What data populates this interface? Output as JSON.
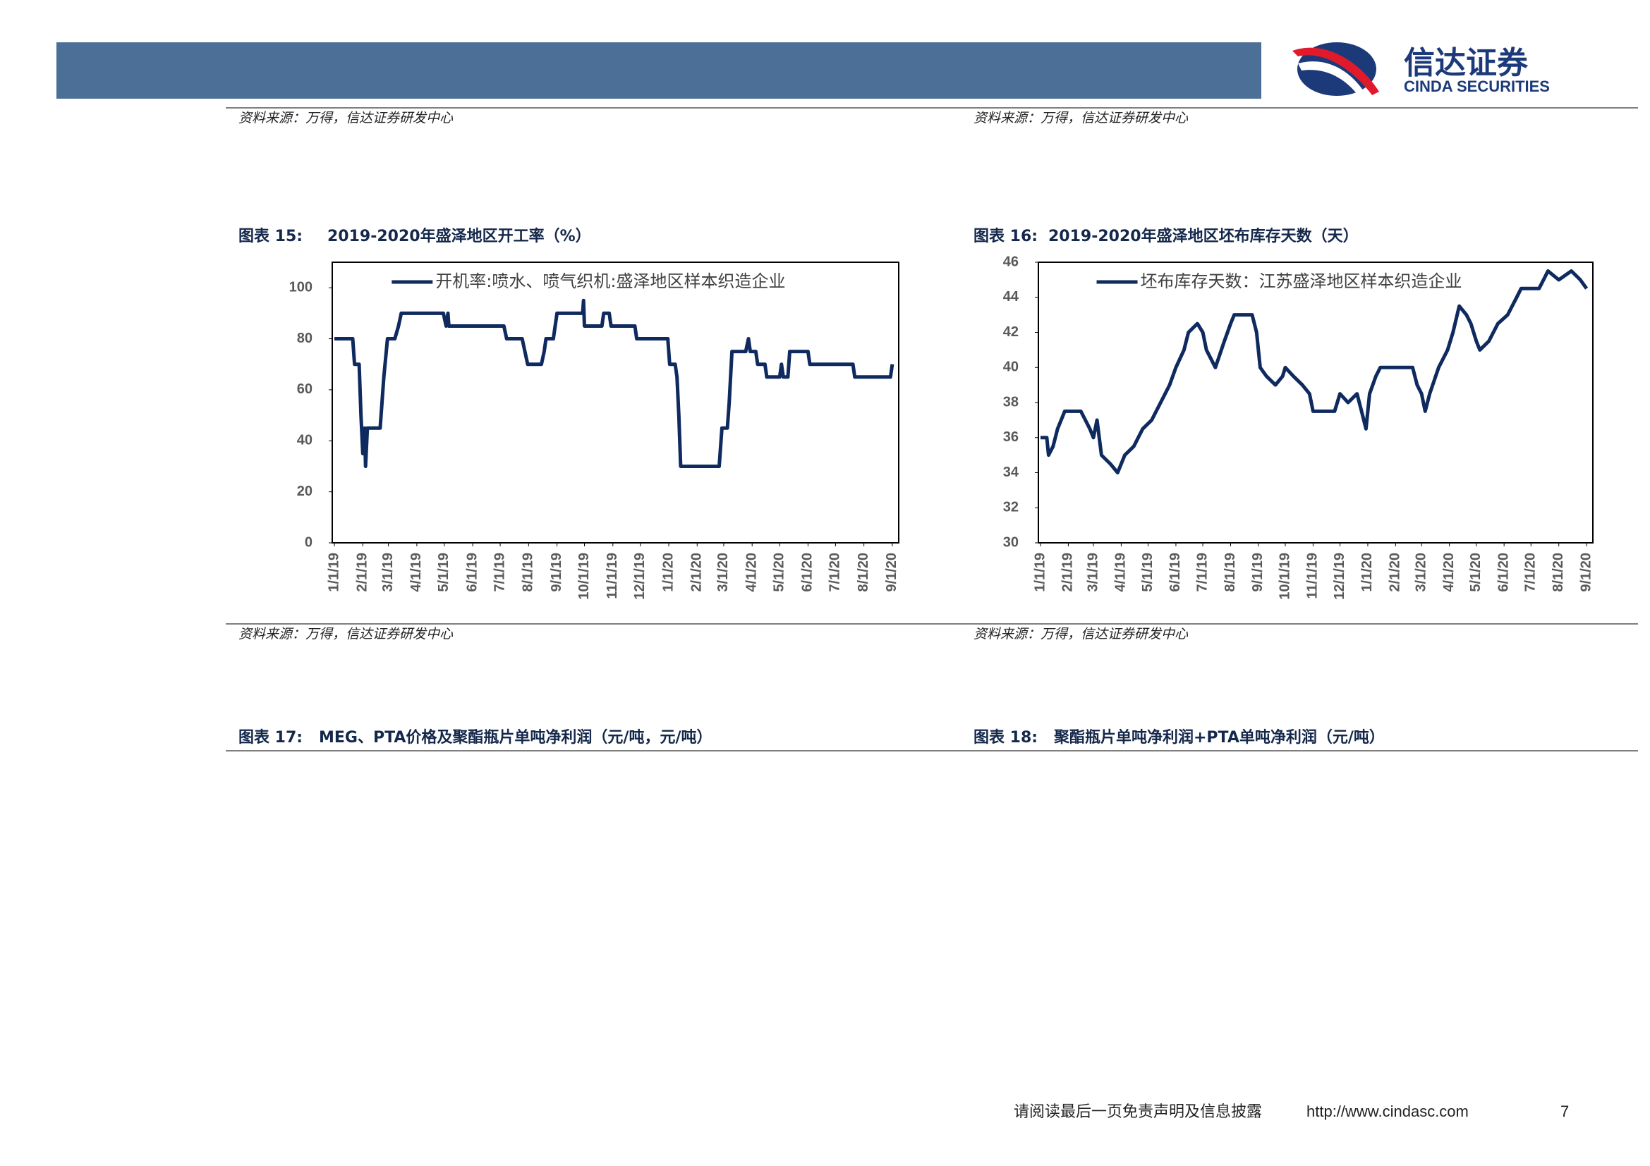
{
  "header": {
    "logo_cn": "信达证券",
    "logo_en": "CINDA SECURITIES"
  },
  "sources": [
    "资料来源：万得，信达证券研发中心",
    "资料来源：万得，信达证券研发中心",
    "资料来源：万得，信达证券研发中心",
    "资料来源：万得，信达证券研发中心"
  ],
  "captions": [
    {
      "label": "图表 17:",
      "title": "MEG、PTA价格及聚酯瓶片单吨净利润（元/吨，元/吨）"
    },
    {
      "label": "图表 18:",
      "title": "聚酯瓶片单吨净利润+PTA单吨净利润（元/吨）"
    }
  ],
  "footer": {
    "disclaimer": "请阅读最后一页免责声明及信息披露",
    "url": "http://www.cindasc.com",
    "page": "7"
  },
  "chart_data": [
    {
      "type": "line",
      "label": "图表 15:",
      "title": "2019-2020年盛泽地区开工率（%）",
      "x": [
        "1/1/19",
        "1/21/19",
        "1/23/19",
        "1/28/19",
        "1/30/19",
        "2/1/19",
        "2/3/19",
        "2/4/19",
        "2/6/19",
        "2/20/19",
        "2/24/19",
        "2/28/19",
        "3/8/19",
        "3/12/19",
        "3/15/19",
        "4/30/19",
        "5/3/19",
        "5/5/19",
        "5/6/19",
        "7/5/19",
        "7/8/19",
        "7/25/19",
        "7/28/19",
        "7/31/19",
        "8/15/19",
        "8/18/19",
        "8/20/19",
        "8/28/19",
        "9/1/19",
        "9/29/19",
        "9/30/19",
        "10/1/19",
        "10/20/19",
        "10/22/19",
        "10/28/19",
        "10/30/19",
        "11/25/19",
        "11/27/19",
        "12/31/19",
        "1/2/20",
        "1/8/20",
        "1/10/20",
        "1/12/20",
        "1/14/20",
        "2/25/20",
        "2/28/20",
        "3/5/20",
        "3/7/20",
        "3/10/20",
        "3/25/20",
        "3/28/20",
        "3/30/20",
        "4/5/20",
        "4/7/20",
        "4/15/20",
        "4/17/20",
        "5/1/20",
        "5/3/20",
        "5/5/20",
        "5/10/20",
        "5/12/20",
        "6/1/20",
        "6/3/20",
        "7/20/20",
        "7/22/20",
        "8/30/20",
        "9/1/20"
      ],
      "series": [
        {
          "name": "开机率:喷水、喷气织机:盛泽地区样本织造企业",
          "color": "#0f2a5e",
          "values": [
            80,
            80,
            70,
            70,
            50,
            35,
            45,
            30,
            45,
            45,
            65,
            80,
            80,
            85,
            90,
            90,
            85,
            90,
            85,
            85,
            80,
            80,
            75,
            70,
            70,
            75,
            80,
            80,
            90,
            90,
            95,
            85,
            85,
            90,
            90,
            85,
            85,
            80,
            80,
            70,
            70,
            65,
            50,
            30,
            30,
            45,
            45,
            55,
            75,
            75,
            80,
            75,
            75,
            70,
            70,
            65,
            65,
            70,
            65,
            65,
            75,
            75,
            70,
            70,
            65,
            65,
            70
          ]
        }
      ],
      "xlim": [
        "1/1/19",
        "9/8/20"
      ],
      "xticks": [
        "1/1/19",
        "2/1/19",
        "3/1/19",
        "4/1/19",
        "5/1/19",
        "6/1/19",
        "7/1/19",
        "8/1/19",
        "9/1/19",
        "10/1/19",
        "11/1/19",
        "12/1/19",
        "1/1/20",
        "2/1/20",
        "3/1/20",
        "4/1/20",
        "5/1/20",
        "6/1/20",
        "7/1/20",
        "8/1/20",
        "9/1/20"
      ],
      "ylim": [
        0,
        110
      ],
      "yticks": [
        0,
        20,
        40,
        60,
        80,
        100
      ],
      "grid": false,
      "legend": "top"
    },
    {
      "type": "line",
      "label": "图表 16:",
      "title": "2019-2020年盛泽地区坯布库存天数（天）",
      "x": [
        "1/1/19",
        "1/8/19",
        "1/10/19",
        "1/15/19",
        "1/20/19",
        "1/28/19",
        "2/15/19",
        "2/20/19",
        "2/25/19",
        "3/1/19",
        "3/5/19",
        "3/10/19",
        "3/20/19",
        "3/28/19",
        "4/5/19",
        "4/15/19",
        "4/25/19",
        "5/5/19",
        "5/15/19",
        "5/25/19",
        "6/1/19",
        "6/10/19",
        "6/15/19",
        "6/25/19",
        "7/1/19",
        "7/5/19",
        "7/10/19",
        "7/15/19",
        "7/25/19",
        "8/1/19",
        "8/5/19",
        "8/25/19",
        "8/30/19",
        "9/3/19",
        "9/10/19",
        "9/20/19",
        "9/28/19",
        "10/1/19",
        "10/10/19",
        "10/20/19",
        "10/28/19",
        "11/1/19",
        "11/25/19",
        "12/1/19",
        "12/10/19",
        "12/20/19",
        "12/25/19",
        "12/30/19",
        "1/3/20",
        "1/10/20",
        "1/15/20",
        "2/20/20",
        "2/25/20",
        "3/1/20",
        "3/5/20",
        "3/10/20",
        "3/20/20",
        "3/30/20",
        "4/5/20",
        "4/12/20",
        "4/20/20",
        "4/25/20",
        "5/1/20",
        "5/5/20",
        "5/15/20",
        "5/25/20",
        "6/5/20",
        "6/15/20",
        "6/20/20",
        "7/10/20",
        "7/15/20",
        "7/20/20",
        "8/1/20",
        "8/15/20",
        "8/25/20",
        "9/1/20"
      ],
      "series": [
        {
          "name": "坯布库存天数：江苏盛泽地区样本织造企业",
          "color": "#0f2a5e",
          "values": [
            36,
            36,
            35,
            35.5,
            36.5,
            37.5,
            37.5,
            37,
            36.5,
            36,
            37,
            35,
            34.5,
            34,
            35,
            35.5,
            36.5,
            37,
            38,
            39,
            40,
            41,
            42,
            42.5,
            42,
            41,
            40.5,
            40,
            41.5,
            42.5,
            43,
            43,
            42,
            40,
            39.5,
            39,
            39.5,
            40,
            39.5,
            39,
            38.5,
            37.5,
            37.5,
            38.5,
            38,
            38.5,
            37.5,
            36.5,
            38.5,
            39.5,
            40,
            40,
            39,
            38.5,
            37.5,
            38.5,
            40,
            41,
            42,
            43.5,
            43,
            42.5,
            41.5,
            41,
            41.5,
            42.5,
            43,
            44,
            44.5,
            44.5,
            45,
            45.5,
            45,
            45.5,
            45,
            44.5
          ]
        }
      ],
      "xlim": [
        "1/1/19",
        "9/8/20"
      ],
      "xticks": [
        "1/1/19",
        "2/1/19",
        "3/1/19",
        "4/1/19",
        "5/1/19",
        "6/1/19",
        "7/1/19",
        "8/1/19",
        "9/1/19",
        "10/1/19",
        "11/1/19",
        "12/1/19",
        "1/1/20",
        "2/1/20",
        "3/1/20",
        "4/1/20",
        "5/1/20",
        "6/1/20",
        "7/1/20",
        "8/1/20",
        "9/1/20"
      ],
      "ylim": [
        30,
        46
      ],
      "yticks": [
        30,
        32,
        34,
        36,
        38,
        40,
        42,
        44,
        46
      ],
      "grid": false,
      "legend": "top"
    }
  ]
}
